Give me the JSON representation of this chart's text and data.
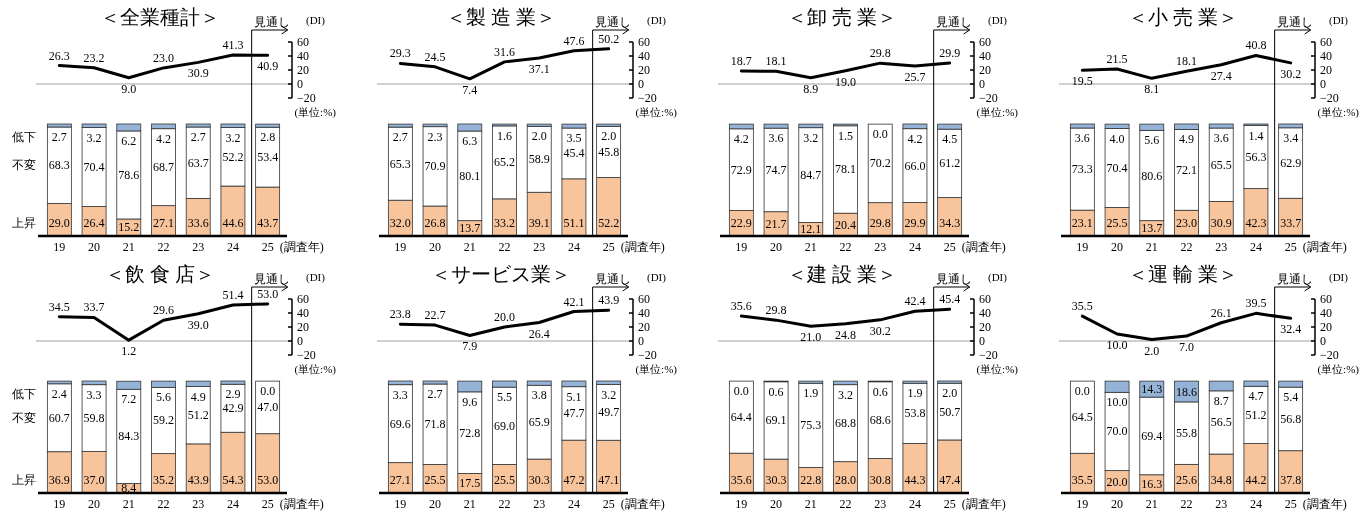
{
  "chart_data": [
    {
      "type": "line",
      "title": "＜全業種計＞",
      "ylabel": "(DI)",
      "categories": [
        "19",
        "20",
        "21",
        "22",
        "23",
        "24",
        "25"
      ],
      "values": [
        26.3,
        23.2,
        9.0,
        23.0,
        30.9,
        41.3,
        40.9
      ],
      "value_labels": [
        "26.3",
        "23.2",
        "9.0",
        "23.0",
        "30.9",
        "41.3",
        "40.9"
      ],
      "color": "#000000",
      "ylim": [
        -20,
        60
      ],
      "yticks": [
        -20,
        0,
        20,
        40,
        60
      ],
      "tick_labels": "y",
      "ref_lines": [
        {
          "axis": "y",
          "value": 0,
          "color": "#a0a0a0"
        }
      ],
      "annotations": [
        "見通し"
      ]
    },
    {
      "type": "bar",
      "stacked": true,
      "xlabel": "(調査年)",
      "categories": [
        "19",
        "20",
        "21",
        "22",
        "23",
        "24",
        "25"
      ],
      "tick_labels": "x",
      "annotations": [
        "(単位:%)"
      ],
      "series": [
        {
          "name": "上昇",
          "color": "#f8c49c",
          "values": [
            29.0,
            26.4,
            15.2,
            27.1,
            33.6,
            44.6,
            43.7
          ],
          "value_labels": [
            "29.0",
            "26.4",
            "15.2",
            "27.1",
            "33.6",
            "44.6",
            "43.7"
          ]
        },
        {
          "name": "不変",
          "color": "#ffffff",
          "values": [
            68.3,
            70.4,
            78.6,
            68.7,
            63.7,
            52.2,
            53.4
          ],
          "value_labels": [
            "68.3",
            "70.4",
            "78.6",
            "68.7",
            "63.7",
            "52.2",
            "53.4"
          ]
        },
        {
          "name": "低下",
          "color": "#95b3d7",
          "values": [
            2.7,
            3.2,
            6.2,
            4.2,
            2.7,
            3.2,
            2.8
          ],
          "value_labels": [
            "2.7",
            "3.2",
            "6.2",
            "4.2",
            "2.7",
            "3.2",
            "2.8"
          ]
        }
      ]
    },
    {
      "type": "line",
      "title": "＜製 造 業＞",
      "ylabel": "(DI)",
      "categories": [
        "19",
        "20",
        "21",
        "22",
        "23",
        "24",
        "25"
      ],
      "values": [
        29.3,
        24.5,
        7.4,
        31.6,
        37.1,
        47.6,
        50.2
      ],
      "value_labels": [
        "29.3",
        "24.5",
        "7.4",
        "31.6",
        "37.1",
        "47.6",
        "50.2"
      ],
      "color": "#000000",
      "ylim": [
        -20,
        60
      ],
      "yticks": [
        -20,
        0,
        20,
        40,
        60
      ],
      "tick_labels": "y",
      "ref_lines": [
        {
          "axis": "y",
          "value": 0,
          "color": "#a0a0a0"
        }
      ],
      "annotations": [
        "見通し"
      ]
    },
    {
      "type": "bar",
      "stacked": true,
      "xlabel": "(調査年)",
      "categories": [
        "19",
        "20",
        "21",
        "22",
        "23",
        "24",
        "25"
      ],
      "tick_labels": "x",
      "annotations": [
        "(単位:%)"
      ],
      "series": [
        {
          "color": "#f8c49c",
          "values": [
            32.0,
            26.8,
            13.7,
            33.2,
            39.1,
            51.1,
            52.2
          ],
          "value_labels": [
            "32.0",
            "26.8",
            "13.7",
            "33.2",
            "39.1",
            "51.1",
            "52.2"
          ]
        },
        {
          "color": "#ffffff",
          "values": [
            65.3,
            70.9,
            80.1,
            65.2,
            58.9,
            45.4,
            45.8
          ],
          "value_labels": [
            "65.3",
            "70.9",
            "80.1",
            "65.2",
            "58.9",
            "45.4",
            "45.8"
          ]
        },
        {
          "color": "#95b3d7",
          "values": [
            2.7,
            2.3,
            6.3,
            1.6,
            2.0,
            3.5,
            2.0
          ],
          "value_labels": [
            "2.7",
            "2.3",
            "6.3",
            "1.6",
            "2.0",
            "3.5",
            "2.0"
          ]
        }
      ]
    },
    {
      "type": "line",
      "title": "＜卸 売 業＞",
      "ylabel": "(DI)",
      "categories": [
        "19",
        "20",
        "21",
        "22",
        "23",
        "24",
        "25"
      ],
      "values": [
        18.7,
        18.1,
        8.9,
        19.0,
        29.8,
        25.7,
        29.9
      ],
      "value_labels": [
        "18.7",
        "18.1",
        "8.9",
        "19.0",
        "29.8",
        "25.7",
        "29.9"
      ],
      "color": "#000000",
      "ylim": [
        -20,
        60
      ],
      "yticks": [
        -20,
        0,
        20,
        40,
        60
      ],
      "tick_labels": "y",
      "ref_lines": [
        {
          "axis": "y",
          "value": 0,
          "color": "#a0a0a0"
        }
      ],
      "annotations": [
        "見通し"
      ]
    },
    {
      "type": "bar",
      "stacked": true,
      "xlabel": "(調査年)",
      "categories": [
        "19",
        "20",
        "21",
        "22",
        "23",
        "24",
        "25"
      ],
      "tick_labels": "x",
      "annotations": [
        "(単位:%)"
      ],
      "series": [
        {
          "color": "#f8c49c",
          "values": [
            22.9,
            21.7,
            12.1,
            20.4,
            29.8,
            29.9,
            34.3
          ],
          "value_labels": [
            "22.9",
            "21.7",
            "12.1",
            "20.4",
            "29.8",
            "29.9",
            "34.3"
          ]
        },
        {
          "color": "#ffffff",
          "values": [
            72.9,
            74.7,
            84.7,
            78.1,
            70.2,
            66.0,
            61.2
          ],
          "value_labels": [
            "72.9",
            "74.7",
            "84.7",
            "78.1",
            "70.2",
            "66.0",
            "61.2"
          ]
        },
        {
          "color": "#95b3d7",
          "values": [
            4.2,
            3.6,
            3.2,
            1.5,
            0.0,
            4.2,
            4.5
          ],
          "value_labels": [
            "4.2",
            "3.6",
            "3.2",
            "1.5",
            "0.0",
            "4.2",
            "4.5"
          ]
        }
      ]
    },
    {
      "type": "line",
      "title": "＜小 売 業＞",
      "ylabel": "(DI)",
      "categories": [
        "19",
        "20",
        "21",
        "22",
        "23",
        "24",
        "25"
      ],
      "values": [
        19.5,
        21.5,
        8.1,
        18.1,
        27.4,
        40.8,
        30.2
      ],
      "value_labels": [
        "19.5",
        "21.5",
        "8.1",
        "18.1",
        "27.4",
        "40.8",
        "30.2"
      ],
      "color": "#000000",
      "ylim": [
        -20,
        60
      ],
      "yticks": [
        -20,
        0,
        20,
        40,
        60
      ],
      "tick_labels": "y",
      "ref_lines": [
        {
          "axis": "y",
          "value": 0,
          "color": "#a0a0a0"
        }
      ],
      "annotations": [
        "見通し"
      ]
    },
    {
      "type": "bar",
      "stacked": true,
      "xlabel": "(調査年)",
      "categories": [
        "19",
        "20",
        "21",
        "22",
        "23",
        "24",
        "25"
      ],
      "tick_labels": "x",
      "annotations": [
        "(単位:%)"
      ],
      "series": [
        {
          "color": "#f8c49c",
          "values": [
            23.1,
            25.5,
            13.7,
            23.0,
            30.9,
            42.3,
            33.7
          ],
          "value_labels": [
            "23.1",
            "25.5",
            "13.7",
            "23.0",
            "30.9",
            "42.3",
            "33.7"
          ]
        },
        {
          "color": "#ffffff",
          "values": [
            73.3,
            70.4,
            80.6,
            72.1,
            65.5,
            56.3,
            62.9
          ],
          "value_labels": [
            "73.3",
            "70.4",
            "80.6",
            "72.1",
            "65.5",
            "56.3",
            "62.9"
          ]
        },
        {
          "color": "#95b3d7",
          "values": [
            3.6,
            4.0,
            5.6,
            4.9,
            3.6,
            1.4,
            3.4
          ],
          "value_labels": [
            "3.6",
            "4.0",
            "5.6",
            "4.9",
            "3.6",
            "1.4",
            "3.4"
          ]
        }
      ]
    },
    {
      "type": "line",
      "title": "＜飲 食 店＞",
      "ylabel": "(DI)",
      "categories": [
        "19",
        "20",
        "21",
        "22",
        "23",
        "24",
        "25"
      ],
      "values": [
        34.5,
        33.7,
        1.2,
        29.6,
        39.0,
        51.4,
        53.0
      ],
      "value_labels": [
        "34.5",
        "33.7",
        "1.2",
        "29.6",
        "39.0",
        "51.4",
        "53.0"
      ],
      "color": "#000000",
      "ylim": [
        -20,
        60
      ],
      "yticks": [
        -20,
        0,
        20,
        40,
        60
      ],
      "tick_labels": "y",
      "ref_lines": [
        {
          "axis": "y",
          "value": 0,
          "color": "#a0a0a0"
        }
      ],
      "annotations": [
        "見通し"
      ]
    },
    {
      "type": "bar",
      "stacked": true,
      "xlabel": "(調査年)",
      "categories": [
        "19",
        "20",
        "21",
        "22",
        "23",
        "24",
        "25"
      ],
      "tick_labels": "x",
      "annotations": [
        "(単位:%)"
      ],
      "series": [
        {
          "name": "上昇",
          "color": "#f8c49c",
          "values": [
            36.9,
            37.0,
            8.4,
            35.2,
            43.9,
            54.3,
            53.0
          ],
          "value_labels": [
            "36.9",
            "37.0",
            "8.4",
            "35.2",
            "43.9",
            "54.3",
            "53.0"
          ]
        },
        {
          "name": "不変",
          "color": "#ffffff",
          "values": [
            60.7,
            59.8,
            84.3,
            59.2,
            51.2,
            42.9,
            47.0
          ],
          "value_labels": [
            "60.7",
            "59.8",
            "84.3",
            "59.2",
            "51.2",
            "42.9",
            "47.0"
          ]
        },
        {
          "name": "低下",
          "color": "#95b3d7",
          "values": [
            2.4,
            3.3,
            7.2,
            5.6,
            4.9,
            2.9,
            0.0
          ],
          "value_labels": [
            "2.4",
            "3.3",
            "7.2",
            "5.6",
            "4.9",
            "2.9",
            "0.0"
          ]
        }
      ]
    },
    {
      "type": "line",
      "title": "＜サービス業＞",
      "ylabel": "(DI)",
      "categories": [
        "19",
        "20",
        "21",
        "22",
        "23",
        "24",
        "25"
      ],
      "values": [
        23.8,
        22.7,
        7.9,
        20.0,
        26.4,
        42.1,
        43.9
      ],
      "value_labels": [
        "23.8",
        "22.7",
        "7.9",
        "20.0",
        "26.4",
        "42.1",
        "43.9"
      ],
      "color": "#000000",
      "ylim": [
        -20,
        60
      ],
      "yticks": [
        -20,
        0,
        20,
        40,
        60
      ],
      "tick_labels": "y",
      "ref_lines": [
        {
          "axis": "y",
          "value": 0,
          "color": "#a0a0a0"
        }
      ],
      "annotations": [
        "見通し"
      ]
    },
    {
      "type": "bar",
      "stacked": true,
      "xlabel": "(調査年)",
      "categories": [
        "19",
        "20",
        "21",
        "22",
        "23",
        "24",
        "25"
      ],
      "tick_labels": "x",
      "annotations": [
        "(単位:%)"
      ],
      "series": [
        {
          "color": "#f8c49c",
          "values": [
            27.1,
            25.5,
            17.5,
            25.5,
            30.3,
            47.2,
            47.1
          ],
          "value_labels": [
            "27.1",
            "25.5",
            "17.5",
            "25.5",
            "30.3",
            "47.2",
            "47.1"
          ]
        },
        {
          "color": "#ffffff",
          "values": [
            69.6,
            71.8,
            72.8,
            69.0,
            65.9,
            47.7,
            49.7
          ],
          "value_labels": [
            "69.6",
            "71.8",
            "72.8",
            "69.0",
            "65.9",
            "47.7",
            "49.7"
          ]
        },
        {
          "color": "#95b3d7",
          "values": [
            3.3,
            2.7,
            9.6,
            5.5,
            3.8,
            5.1,
            3.2
          ],
          "value_labels": [
            "3.3",
            "2.7",
            "9.6",
            "5.5",
            "3.8",
            "5.1",
            "3.2"
          ]
        }
      ]
    },
    {
      "type": "line",
      "title": "＜建 設 業＞",
      "ylabel": "(DI)",
      "categories": [
        "19",
        "20",
        "21",
        "22",
        "23",
        "24",
        "25"
      ],
      "values": [
        35.6,
        29.8,
        21.0,
        24.8,
        30.2,
        42.4,
        45.4
      ],
      "value_labels": [
        "35.6",
        "29.8",
        "21.0",
        "24.8",
        "30.2",
        "42.4",
        "45.4"
      ],
      "color": "#000000",
      "ylim": [
        -20,
        60
      ],
      "yticks": [
        -20,
        0,
        20,
        40,
        60
      ],
      "tick_labels": "y",
      "ref_lines": [
        {
          "axis": "y",
          "value": 0,
          "color": "#a0a0a0"
        }
      ],
      "annotations": [
        "見通し"
      ]
    },
    {
      "type": "bar",
      "stacked": true,
      "xlabel": "(調査年)",
      "categories": [
        "19",
        "20",
        "21",
        "22",
        "23",
        "24",
        "25"
      ],
      "tick_labels": "x",
      "annotations": [
        "(単位:%)"
      ],
      "series": [
        {
          "color": "#f8c49c",
          "values": [
            35.6,
            30.3,
            22.8,
            28.0,
            30.8,
            44.3,
            47.4
          ],
          "value_labels": [
            "35.6",
            "30.3",
            "22.8",
            "28.0",
            "30.8",
            "44.3",
            "47.4"
          ]
        },
        {
          "color": "#ffffff",
          "values": [
            64.4,
            69.1,
            75.3,
            68.8,
            68.6,
            53.8,
            50.7
          ],
          "value_labels": [
            "64.4",
            "69.1",
            "75.3",
            "68.8",
            "68.6",
            "53.8",
            "50.7"
          ]
        },
        {
          "color": "#95b3d7",
          "values": [
            0.0,
            0.6,
            1.9,
            3.2,
            0.6,
            1.9,
            2.0
          ],
          "value_labels": [
            "0.0",
            "0.6",
            "1.9",
            "3.2",
            "0.6",
            "1.9",
            "2.0"
          ]
        }
      ]
    },
    {
      "type": "line",
      "title": "＜運 輸 業＞",
      "ylabel": "(DI)",
      "categories": [
        "19",
        "20",
        "21",
        "22",
        "23",
        "24",
        "25"
      ],
      "values": [
        35.5,
        10.0,
        2.0,
        7.0,
        26.1,
        39.5,
        32.4
      ],
      "value_labels": [
        "35.5",
        "10.0",
        "2.0",
        "7.0",
        "26.1",
        "39.5",
        "32.4"
      ],
      "color": "#000000",
      "ylim": [
        -20,
        60
      ],
      "yticks": [
        -20,
        0,
        20,
        40,
        60
      ],
      "tick_labels": "y",
      "ref_lines": [
        {
          "axis": "y",
          "value": 0,
          "color": "#a0a0a0"
        }
      ],
      "annotations": [
        "見通し"
      ]
    },
    {
      "type": "bar",
      "stacked": true,
      "xlabel": "(調査年)",
      "categories": [
        "19",
        "20",
        "21",
        "22",
        "23",
        "24",
        "25"
      ],
      "tick_labels": "x",
      "annotations": [
        "(単位:%)"
      ],
      "series": [
        {
          "color": "#f8c49c",
          "values": [
            35.5,
            20.0,
            16.3,
            25.6,
            34.8,
            44.2,
            37.8
          ],
          "value_labels": [
            "35.5",
            "20.0",
            "16.3",
            "25.6",
            "34.8",
            "44.2",
            "37.8"
          ]
        },
        {
          "color": "#ffffff",
          "values": [
            64.5,
            70.0,
            69.4,
            55.8,
            56.5,
            51.2,
            56.8
          ],
          "value_labels": [
            "64.5",
            "70.0",
            "69.4",
            "55.8",
            "56.5",
            "51.2",
            "56.8"
          ]
        },
        {
          "color": "#95b3d7",
          "values": [
            0.0,
            10.0,
            14.3,
            18.6,
            8.7,
            4.7,
            5.4
          ],
          "value_labels": [
            "0.0",
            "10.0",
            "14.3",
            "18.6",
            "8.7",
            "4.7",
            "5.4"
          ]
        }
      ]
    }
  ]
}
